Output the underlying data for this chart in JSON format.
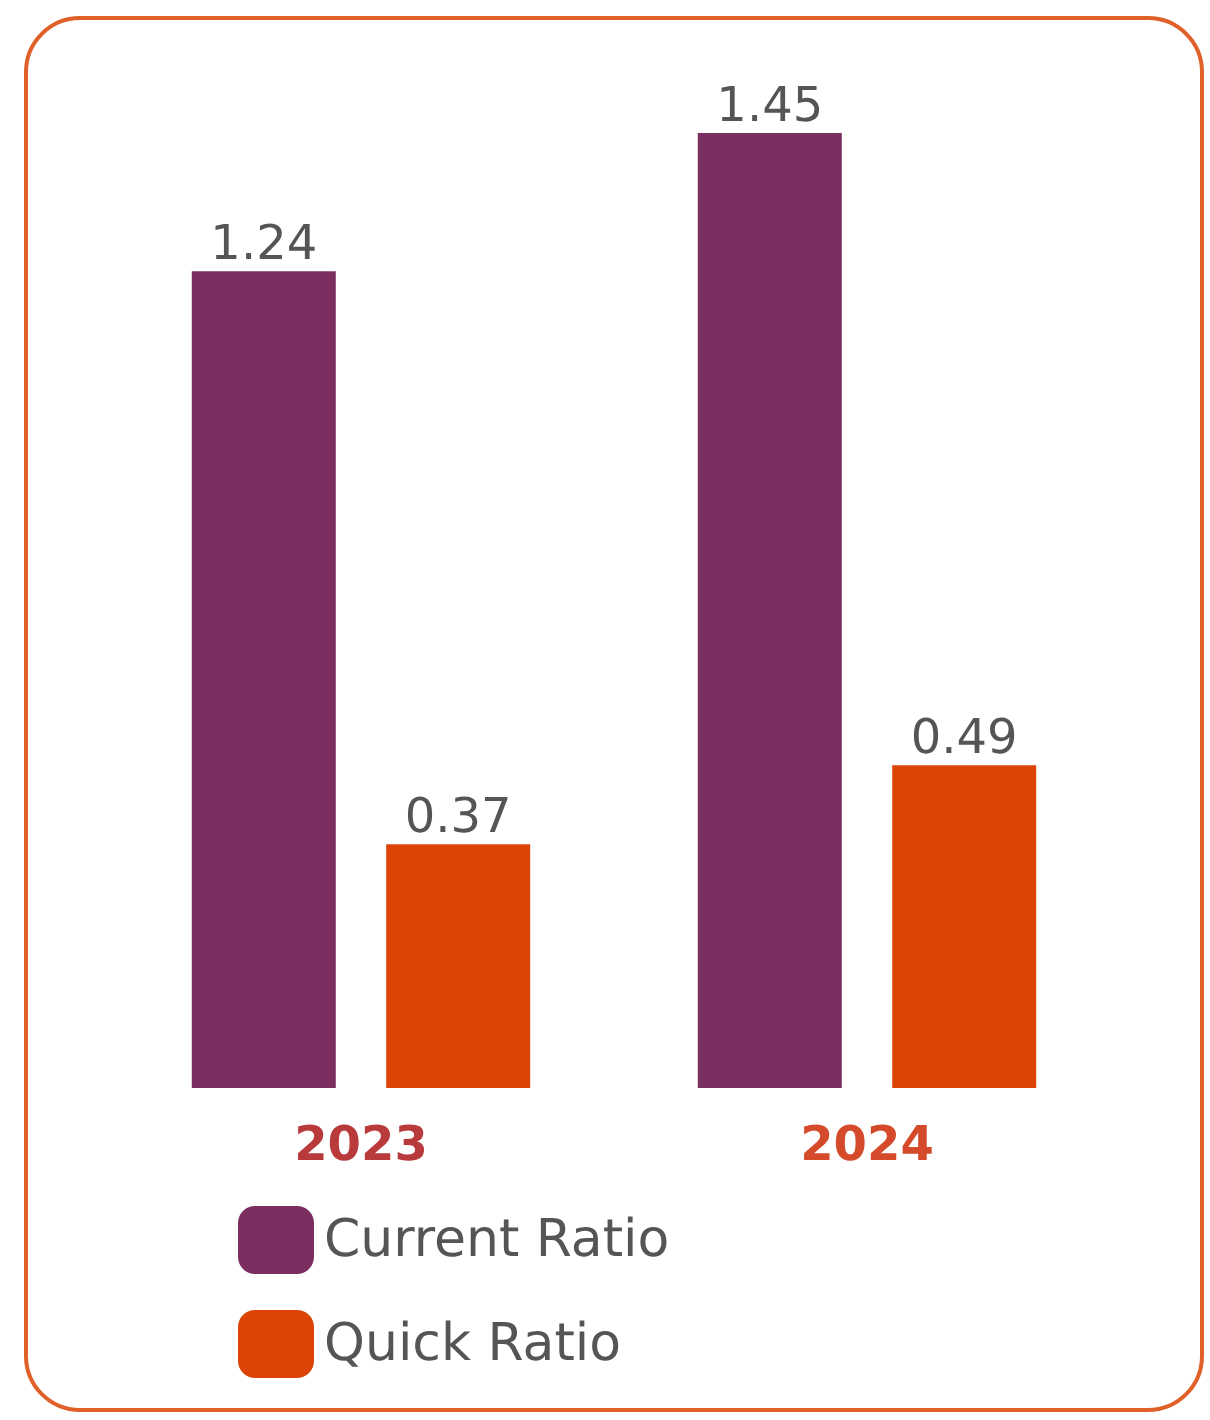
{
  "chart_data": {
    "type": "bar",
    "categories": [
      "2023",
      "2024"
    ],
    "series": [
      {
        "name": "Current Ratio",
        "color": "#7a2f60",
        "values": [
          1.24,
          1.45
        ]
      },
      {
        "name": "Quick Ratio",
        "color": "#dc4405",
        "values": [
          0.37,
          0.49
        ]
      }
    ],
    "data_labels": true,
    "legend": "bottom",
    "grid": false
  }
}
